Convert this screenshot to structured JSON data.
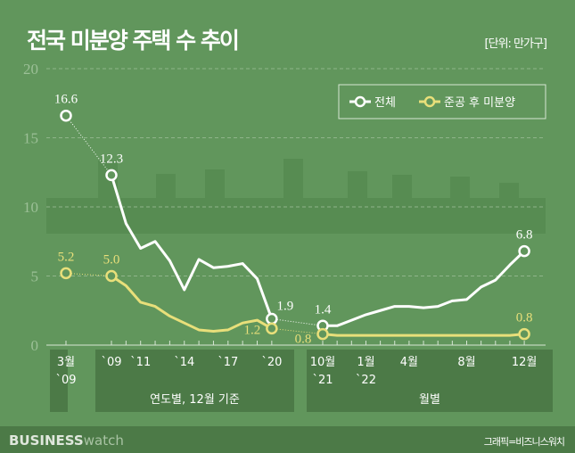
{
  "title": "전국 미분양 주택 수 추이",
  "unit": "[단위: 만가구]",
  "brand": {
    "bold": "BUSINESS",
    "light": "watch"
  },
  "credit": "그래픽=비즈니스워치",
  "colors": {
    "background": "#61965c",
    "total": "#ffffff",
    "completed": "#e8df7a",
    "panel": "#4c7a47"
  },
  "chart_data": {
    "type": "line",
    "title": "전국 미분양 주택 수 추이",
    "ylabel": "[단위: 만가구]",
    "ylim": [
      0,
      20
    ],
    "yticks": [
      "0",
      "5",
      "10",
      "15",
      "20"
    ],
    "grid": "dashed horizontal",
    "legend": {
      "placement": "top-right",
      "entries": [
        "전체",
        "준공 후 미분양"
      ]
    },
    "groups": [
      {
        "label": "",
        "ticks": [
          {
            "label": "3월",
            "sub": "`09"
          }
        ],
        "x": [
          "2009-03"
        ],
        "total": [
          16.6
        ],
        "completed": [
          5.2
        ]
      },
      {
        "label": "연도별, 12월 기준",
        "ticks": [
          {
            "label": "`09"
          },
          {
            "label": "`11"
          },
          {
            "label": "`14"
          },
          {
            "label": "`17"
          },
          {
            "label": "`20"
          }
        ],
        "x": [
          "2009",
          "2010",
          "2011",
          "2012",
          "2013",
          "2014",
          "2015",
          "2016",
          "2017",
          "2018",
          "2019",
          "2020"
        ],
        "total": [
          12.3,
          8.8,
          7.0,
          7.5,
          6.1,
          4.0,
          6.2,
          5.6,
          5.7,
          5.9,
          4.8,
          1.9
        ],
        "completed": [
          5.0,
          4.3,
          3.1,
          2.8,
          2.1,
          1.6,
          1.1,
          1.0,
          1.1,
          1.6,
          1.8,
          1.2
        ]
      },
      {
        "label": "월별",
        "ticks": [
          {
            "label": "10월",
            "sub": "`21"
          },
          {
            "label": "1월",
            "sub": "`22"
          },
          {
            "label": "4월"
          },
          {
            "label": "8월"
          },
          {
            "label": "12월"
          }
        ],
        "x": [
          "2021-10",
          "2021-11",
          "2021-12",
          "2022-01",
          "2022-02",
          "2022-03",
          "2022-04",
          "2022-05",
          "2022-06",
          "2022-07",
          "2022-08",
          "2022-09",
          "2022-10",
          "2022-11",
          "2022-12"
        ],
        "total": [
          1.4,
          1.4,
          1.8,
          2.2,
          2.5,
          2.8,
          2.8,
          2.7,
          2.8,
          3.2,
          3.3,
          4.2,
          4.7,
          5.8,
          6.8
        ],
        "completed": [
          0.8,
          0.7,
          0.7,
          0.7,
          0.7,
          0.7,
          0.7,
          0.7,
          0.7,
          0.7,
          0.7,
          0.7,
          0.7,
          0.7,
          0.8
        ]
      }
    ],
    "data_labels": {
      "total": [
        "16.6",
        "12.3",
        "1.9",
        "1.4",
        "6.8"
      ],
      "completed": [
        "5.2",
        "5.0",
        "1.2",
        "0.8",
        "0.8"
      ]
    }
  }
}
